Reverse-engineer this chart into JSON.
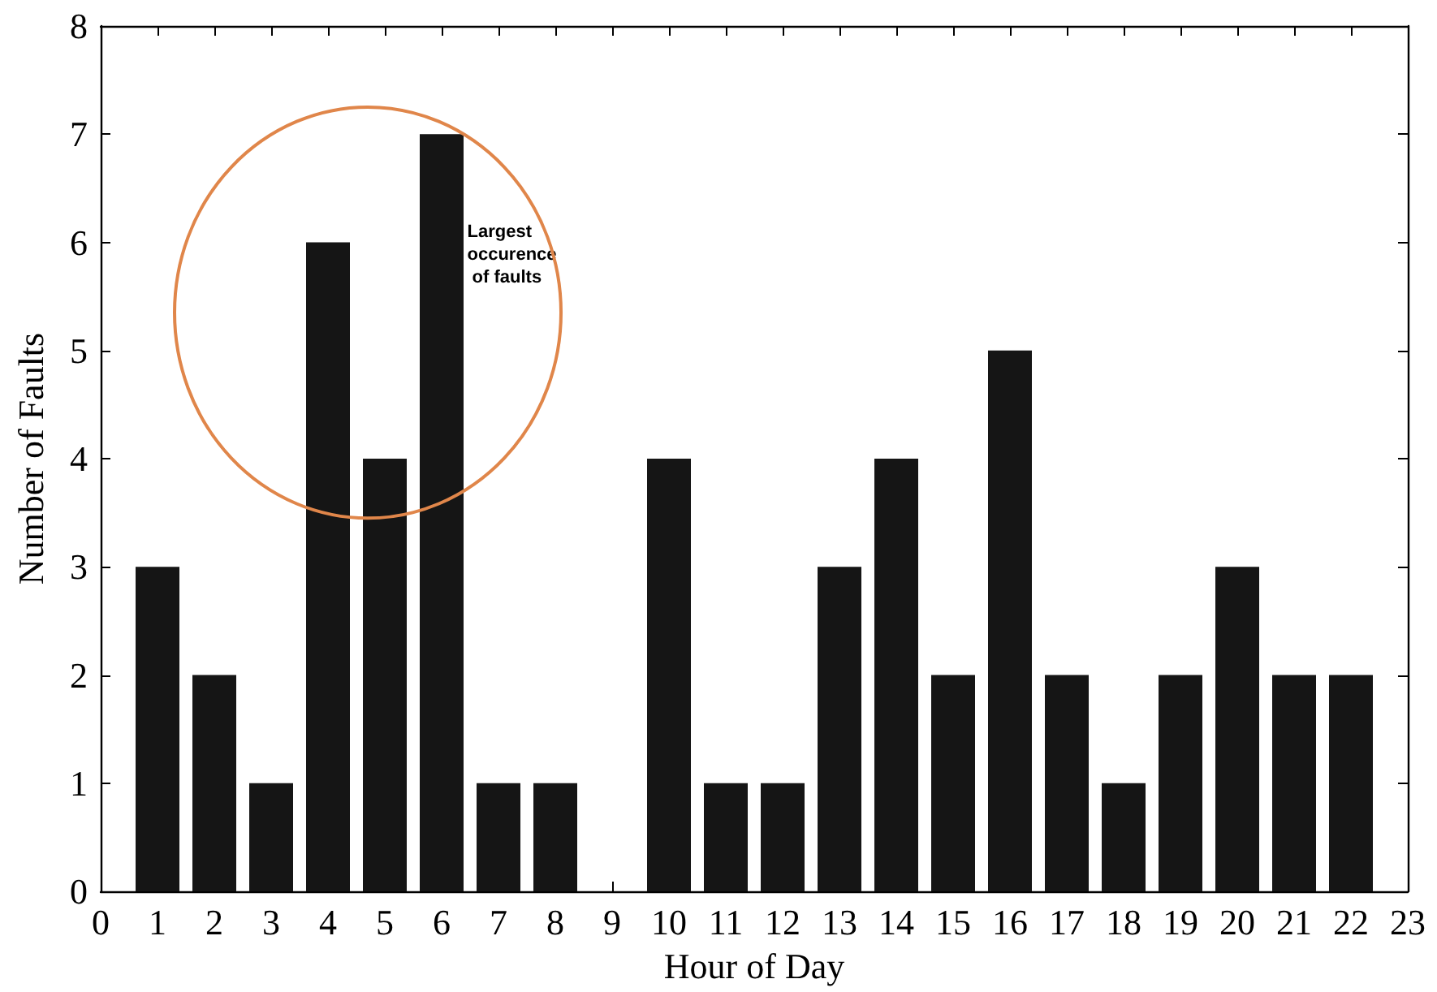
{
  "chart_data": {
    "type": "bar",
    "xlabel": "Hour of Day",
    "ylabel": "Number of Faults",
    "x": [
      1,
      2,
      3,
      4,
      5,
      6,
      7,
      8,
      9,
      10,
      11,
      12,
      13,
      14,
      15,
      16,
      17,
      18,
      19,
      20,
      21,
      22
    ],
    "values": [
      3,
      2,
      1,
      6,
      4,
      7,
      1,
      1,
      0,
      4,
      1,
      1,
      3,
      4,
      2,
      5,
      2,
      1,
      2,
      3,
      2,
      2
    ],
    "color": "#151515",
    "xlim": [
      0,
      23
    ],
    "xticks": [
      0,
      1,
      2,
      3,
      4,
      5,
      6,
      7,
      8,
      9,
      10,
      11,
      12,
      13,
      14,
      15,
      16,
      17,
      18,
      19,
      20,
      21,
      22,
      23
    ],
    "ylim": [
      0,
      8
    ],
    "yticks": [
      0,
      1,
      2,
      3,
      4,
      5,
      6,
      7,
      8
    ],
    "grid": false,
    "annotations": [
      "Largest occurence of faults"
    ]
  }
}
